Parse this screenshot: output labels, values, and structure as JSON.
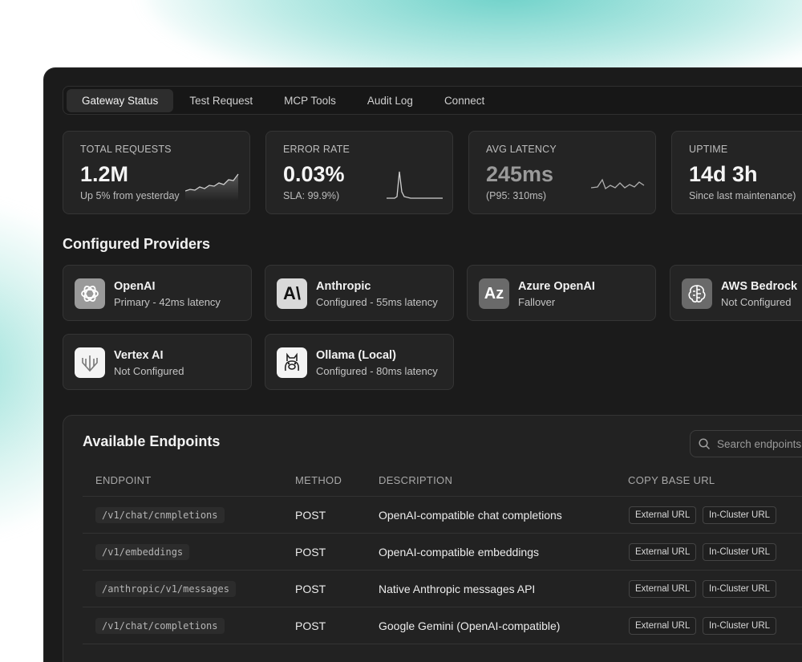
{
  "tabs": [
    "Gateway Status",
    "Test Request",
    "MCP Tools",
    "Audit Log",
    "Connect"
  ],
  "active_tab": "Gateway Status",
  "stats": [
    {
      "label": "TOTAL REQUESTS",
      "value": "1.2M",
      "sub": "Up 5% from yesterday"
    },
    {
      "label": "ERROR RATE",
      "value": "0.03%",
      "sub": "SLA: 99.9%)"
    },
    {
      "label": "AVG LATENCY",
      "value": "245ms",
      "sub": "(P95: 310ms)"
    },
    {
      "label": "UPTIME",
      "value": "14d 3h",
      "sub": "Since last maintenance)"
    }
  ],
  "providers_title": "Configured Providers",
  "providers": [
    {
      "name": "OpenAI",
      "status": "Primary - 42ms latency",
      "icon": "openai-icon"
    },
    {
      "name": "Anthropic",
      "status": "Configured - 55ms latency",
      "icon": "anthropic-icon",
      "icon_text": "A\\"
    },
    {
      "name": "Azure OpenAI",
      "status": "Fallover",
      "icon": "azure-icon",
      "icon_text": "Az"
    },
    {
      "name": "AWS Bedrock",
      "status": "Not Configured",
      "icon": "bedrock-brain-icon"
    },
    {
      "name": "Vertex AI",
      "status": "Not Configured",
      "icon": "vertex-icon"
    },
    {
      "name": "Ollama (Local)",
      "status": "Configured - 80ms latency",
      "icon": "ollama-llama-icon"
    }
  ],
  "endpoints": {
    "title": "Available Endpoints",
    "search_placeholder": "Search endpoints",
    "columns": [
      "ENDPOINT",
      "METHOD",
      "DESCRIPTION",
      "COPY BASE URL"
    ],
    "external_label": "External URL",
    "incluster_label": "In-Cluster URL",
    "rows": [
      {
        "path": "/v1/chat/cnmpletions",
        "method": "POST",
        "description": "OpenAI-compatible chat completions"
      },
      {
        "path": "/v1/embeddings",
        "method": "POST",
        "description": "OpenAI-compatible embeddings"
      },
      {
        "path": "/anthropic/v1/messages",
        "method": "POST",
        "description": "Native Anthropic messages API"
      },
      {
        "path": "/v1/chat/completions",
        "method": "POST",
        "description": "Google Gemini (OpenAI-compatible)"
      }
    ]
  }
}
